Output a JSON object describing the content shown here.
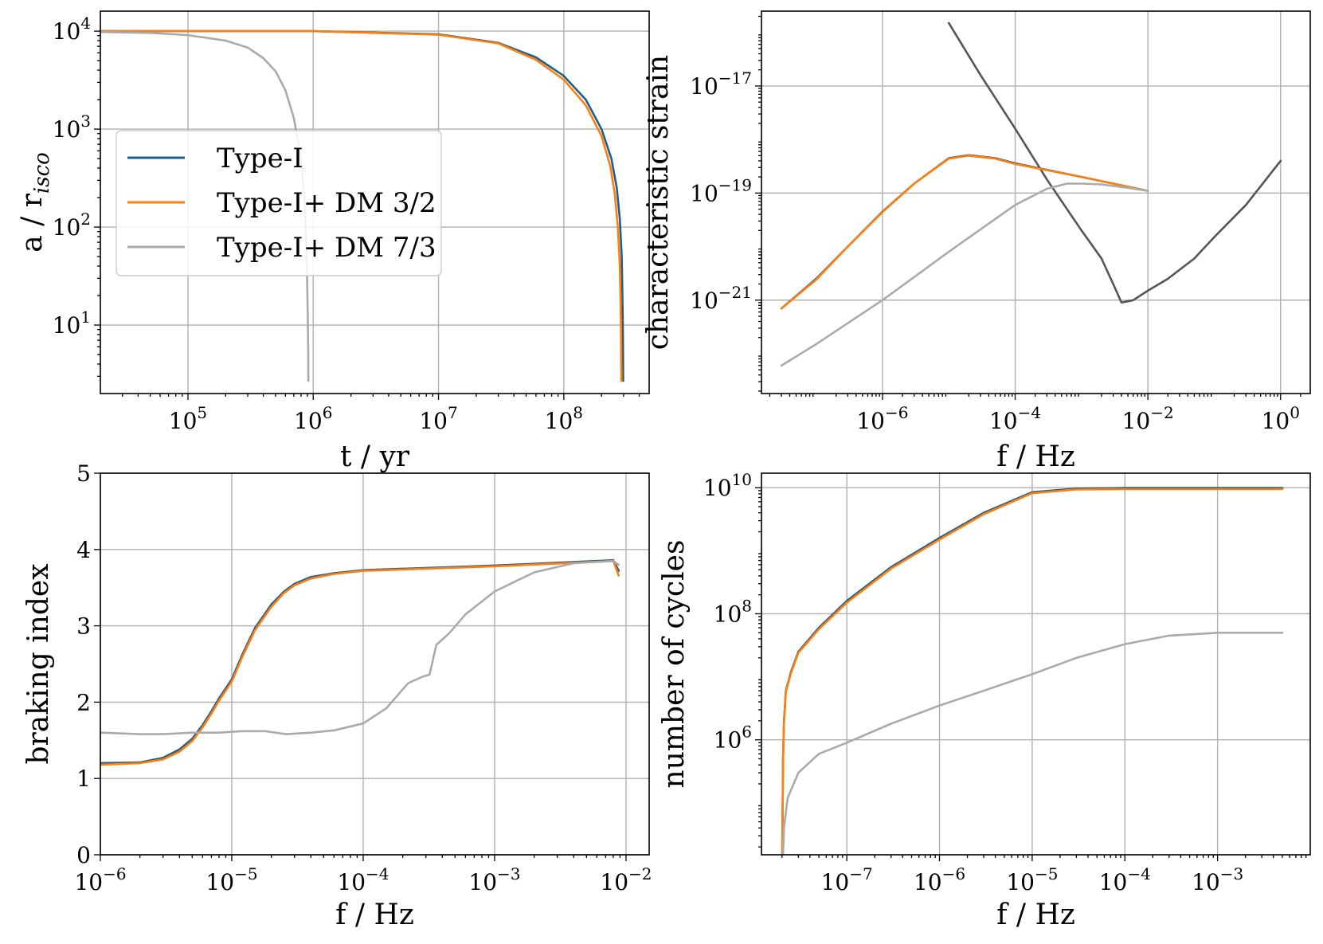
{
  "chart_data": [
    {
      "id": "p1",
      "type": "line",
      "xlabel": "t / yr",
      "ylabel": "a / r_isco",
      "xscale": "log",
      "yscale": "log",
      "xlim": [
        20000,
        480000000
      ],
      "ylim": [
        2,
        16000
      ],
      "xticks": [
        {
          "value": 100000,
          "label": "10",
          "exp": "5"
        },
        {
          "value": 1000000,
          "label": "10",
          "exp": "6"
        },
        {
          "value": 10000000,
          "label": "10",
          "exp": "7"
        },
        {
          "value": 100000000,
          "label": "10",
          "exp": "8"
        }
      ],
      "yticks": [
        {
          "value": 10,
          "label": "10",
          "exp": "1"
        },
        {
          "value": 100,
          "label": "10",
          "exp": "2"
        },
        {
          "value": 1000,
          "label": "10",
          "exp": "3"
        },
        {
          "value": 10000,
          "label": "10",
          "exp": "4"
        }
      ],
      "legend": {
        "placement": "center-left",
        "entries": [
          "Type-I",
          "Type-I+ DM 3/2",
          "Type-I+ DM 7/3"
        ]
      },
      "series": [
        {
          "name": "Type-I",
          "color": "#1f5f8b",
          "x": [
            20000,
            100000,
            1000000,
            10000000,
            30000000,
            60000000,
            100000000,
            150000000,
            200000000,
            240000000,
            265000000,
            280000000,
            290000000,
            295000000,
            297000000,
            298000000,
            298000000
          ],
          "y": [
            10000,
            10000,
            10000,
            9300,
            7600,
            5400,
            3500,
            2000,
            1000,
            500,
            250,
            120,
            50,
            15,
            6,
            3,
            2.7
          ]
        },
        {
          "name": "Type-I+ DM 3/2",
          "color": "#ff7f0e",
          "x": [
            20000,
            100000,
            1000000,
            10000000,
            30000000,
            60000000,
            100000000,
            150000000,
            200000000,
            235000000,
            255000000,
            270000000,
            280000000,
            285000000,
            287000000,
            288000000,
            288000000
          ],
          "y": [
            10000,
            10000,
            10000,
            9200,
            7500,
            5100,
            3200,
            1750,
            850,
            420,
            220,
            100,
            40,
            12,
            5,
            3,
            2.7
          ]
        },
        {
          "name": "Type-I+ DM 7/3",
          "color": "#aaaaaa",
          "x": [
            20000,
            50000,
            100000,
            200000,
            300000,
            400000,
            500000,
            600000,
            700000,
            800000,
            860000,
            890000,
            905000,
            912000,
            914000,
            915000
          ],
          "y": [
            9800,
            9600,
            9100,
            8000,
            6800,
            5300,
            3900,
            2500,
            1300,
            500,
            160,
            40,
            12,
            5,
            3,
            2.7
          ]
        }
      ]
    },
    {
      "id": "p2",
      "type": "line",
      "xlabel": "f / Hz",
      "ylabel": "characteristic strain",
      "xscale": "log",
      "yscale": "log",
      "xlim": [
        1.5e-08,
        2.8
      ],
      "ylim": [
        1.8e-23,
        2.5e-16
      ],
      "xticks": [
        {
          "value": 1e-06,
          "label": "10",
          "exp": "−6"
        },
        {
          "value": 0.0001,
          "label": "10",
          "exp": "−4"
        },
        {
          "value": 0.01,
          "label": "10",
          "exp": "−2"
        },
        {
          "value": 1,
          "label": "10",
          "exp": "0"
        }
      ],
      "yticks": [
        {
          "value": 1e-21,
          "label": "10",
          "exp": "−21"
        },
        {
          "value": 1e-19,
          "label": "10",
          "exp": "−19"
        },
        {
          "value": 1e-17,
          "label": "10",
          "exp": "−17"
        }
      ],
      "series": [
        {
          "color": "#555555",
          "x": [
            1e-05,
            3e-05,
            0.0001,
            0.0003,
            0.001,
            0.002,
            0.003,
            0.004,
            0.006,
            0.01,
            0.02,
            0.05,
            0.1,
            0.3,
            1
          ],
          "y": [
            1.5e-16,
            1.6e-17,
            1.6e-18,
            1.8e-19,
            2e-20,
            6e-21,
            2e-21,
            9e-22,
            1e-21,
            1.5e-21,
            2.5e-21,
            6e-21,
            1.5e-20,
            6e-20,
            4e-19
          ]
        },
        {
          "name": "Type-I",
          "color": "#1f5f8b",
          "x": [
            3e-08,
            1e-07,
            3e-07,
            1e-06,
            3e-06,
            1e-05,
            2e-05,
            5e-05,
            0.0001,
            0.001,
            0.01
          ],
          "y": [
            7e-22,
            2.5e-21,
            1e-20,
            4.5e-20,
            1.5e-19,
            4.5e-19,
            5.1e-19,
            4.5e-19,
            3.6e-19,
            2e-19,
            1.1e-19
          ]
        },
        {
          "name": "Type-I+ DM 3/2",
          "color": "#ff7f0e",
          "x": [
            3e-08,
            1e-07,
            3e-07,
            1e-06,
            3e-06,
            1e-05,
            2e-05,
            5e-05,
            0.0001,
            0.001,
            0.01
          ],
          "y": [
            7e-22,
            2.4e-21,
            1e-20,
            4.4e-20,
            1.5e-19,
            4.4e-19,
            5e-19,
            4.4e-19,
            3.5e-19,
            2e-19,
            1.1e-19
          ]
        },
        {
          "name": "Type-I+ DM 7/3",
          "color": "#aaaaaa",
          "x": [
            3e-08,
            1e-07,
            1e-06,
            1e-05,
            0.0001,
            0.0003,
            0.0006,
            0.001,
            0.002,
            0.005,
            0.01
          ],
          "y": [
            6e-23,
            1.5e-22,
            1e-21,
            8e-21,
            6e-20,
            1.2e-19,
            1.5e-19,
            1.5e-19,
            1.45e-19,
            1.25e-19,
            1.1e-19
          ]
        }
      ]
    },
    {
      "id": "p3",
      "type": "line",
      "xlabel": "f / Hz",
      "ylabel": "braking index",
      "xscale": "log",
      "yscale": "linear",
      "xlim": [
        1e-06,
        0.015
      ],
      "ylim": [
        0,
        5
      ],
      "xticks": [
        {
          "value": 1e-06,
          "label": "10",
          "exp": "−6"
        },
        {
          "value": 1e-05,
          "label": "10",
          "exp": "−5"
        },
        {
          "value": 0.0001,
          "label": "10",
          "exp": "−4"
        },
        {
          "value": 0.001,
          "label": "10",
          "exp": "−3"
        },
        {
          "value": 0.01,
          "label": "10",
          "exp": "−2"
        }
      ],
      "yticks": [
        {
          "value": 0,
          "label": "0"
        },
        {
          "value": 1,
          "label": "1"
        },
        {
          "value": 2,
          "label": "2"
        },
        {
          "value": 3,
          "label": "3"
        },
        {
          "value": 4,
          "label": "4"
        },
        {
          "value": 5,
          "label": "5"
        }
      ],
      "series": [
        {
          "name": "Type-I",
          "color": "#1f5f8b",
          "x": [
            1e-06,
            2e-06,
            3e-06,
            4e-06,
            5e-06,
            6e-06,
            7e-06,
            8e-06,
            1e-05,
            1.2e-05,
            1.5e-05,
            2e-05,
            2.5e-05,
            3e-05,
            4e-05,
            6e-05,
            0.0001,
            0.001,
            0.008,
            0.0088
          ],
          "y": [
            1.2,
            1.21,
            1.27,
            1.38,
            1.52,
            1.7,
            1.88,
            2.05,
            2.3,
            2.62,
            2.97,
            3.28,
            3.45,
            3.55,
            3.64,
            3.69,
            3.73,
            3.79,
            3.86,
            3.72
          ]
        },
        {
          "name": "Type-I+ DM 3/2",
          "color": "#ff7f0e",
          "x": [
            1e-06,
            2e-06,
            3e-06,
            4e-06,
            5e-06,
            6e-06,
            7e-06,
            8e-06,
            1e-05,
            1.2e-05,
            1.5e-05,
            2e-05,
            2.5e-05,
            3e-05,
            4e-05,
            6e-05,
            0.0001,
            0.001,
            0.008,
            0.0088
          ],
          "y": [
            1.18,
            1.2,
            1.25,
            1.35,
            1.49,
            1.67,
            1.85,
            2.02,
            2.27,
            2.59,
            2.94,
            3.25,
            3.43,
            3.53,
            3.62,
            3.68,
            3.72,
            3.78,
            3.85,
            3.66
          ]
        },
        {
          "name": "Type-I+ DM 7/3",
          "color": "#aaaaaa",
          "x": [
            1e-06,
            2e-06,
            3e-06,
            5e-06,
            8e-06,
            1.2e-05,
            1.8e-05,
            2.6e-05,
            4e-05,
            6e-05,
            0.0001,
            0.00015,
            0.00022,
            0.00028,
            0.00032,
            0.00036,
            0.00045,
            0.0006,
            0.001,
            0.002,
            0.004,
            0.008,
            0.0088
          ],
          "y": [
            1.6,
            1.58,
            1.58,
            1.6,
            1.6,
            1.62,
            1.62,
            1.58,
            1.6,
            1.63,
            1.72,
            1.92,
            2.25,
            2.33,
            2.36,
            2.75,
            2.9,
            3.15,
            3.45,
            3.7,
            3.82,
            3.85,
            3.8
          ]
        }
      ]
    },
    {
      "id": "p4",
      "type": "line",
      "xlabel": "f / Hz",
      "ylabel": "number of cycles",
      "xscale": "log",
      "yscale": "log",
      "xlim": [
        1.2e-08,
        0.01
      ],
      "ylim": [
        15000,
        17000000000
      ],
      "xticks": [
        {
          "value": 1e-07,
          "label": "10",
          "exp": "−7"
        },
        {
          "value": 1e-06,
          "label": "10",
          "exp": "−6"
        },
        {
          "value": 1e-05,
          "label": "10",
          "exp": "−5"
        },
        {
          "value": 0.0001,
          "label": "10",
          "exp": "−4"
        },
        {
          "value": 0.001,
          "label": "10",
          "exp": "−3"
        }
      ],
      "yticks": [
        {
          "value": 1000000,
          "label": "10",
          "exp": "6"
        },
        {
          "value": 100000000,
          "label": "10",
          "exp": "8"
        },
        {
          "value": 10000000000,
          "label": "10",
          "exp": "10"
        }
      ],
      "series": [
        {
          "name": "Type-I",
          "color": "#1f5f8b",
          "x": [
            2.01e-08,
            2.05e-08,
            2.1e-08,
            2.2e-08,
            2.5e-08,
            3e-08,
            5e-08,
            1e-07,
            3e-07,
            1e-06,
            3e-06,
            1e-05,
            3e-05,
            0.0001,
            0.005
          ],
          "y": [
            15000,
            500000,
            2000000,
            6000000,
            12000000,
            25000000,
            60000000,
            160000000,
            550000000,
            1600000000,
            4000000000,
            8500000000,
            9700000000,
            9900000000,
            9900000000
          ]
        },
        {
          "name": "Type-I+ DM 3/2",
          "color": "#ff7f0e",
          "x": [
            2.01e-08,
            2.05e-08,
            2.1e-08,
            2.2e-08,
            2.5e-08,
            3e-08,
            5e-08,
            1e-07,
            3e-07,
            1e-06,
            3e-06,
            1e-05,
            3e-05,
            0.0001,
            0.005
          ],
          "y": [
            15000,
            480000,
            1900000,
            5800000,
            11500000,
            24000000,
            57000000,
            150000000,
            520000000,
            1500000000,
            3800000000,
            8200000000,
            9400000000,
            9500000000,
            9500000000
          ]
        },
        {
          "name": "Type-I+ DM 7/3",
          "color": "#aaaaaa",
          "x": [
            2.05e-08,
            2.1e-08,
            2.3e-08,
            3e-08,
            5e-08,
            1e-07,
            3e-07,
            1e-06,
            3e-06,
            1e-05,
            3e-05,
            0.0001,
            0.0003,
            0.001,
            0.005
          ],
          "y": [
            15000,
            40000,
            120000,
            300000,
            600000,
            900000,
            1800000,
            3500000,
            6000000,
            11000000,
            20000000,
            33000000,
            45000000,
            50000000,
            50000000
          ]
        }
      ]
    }
  ]
}
